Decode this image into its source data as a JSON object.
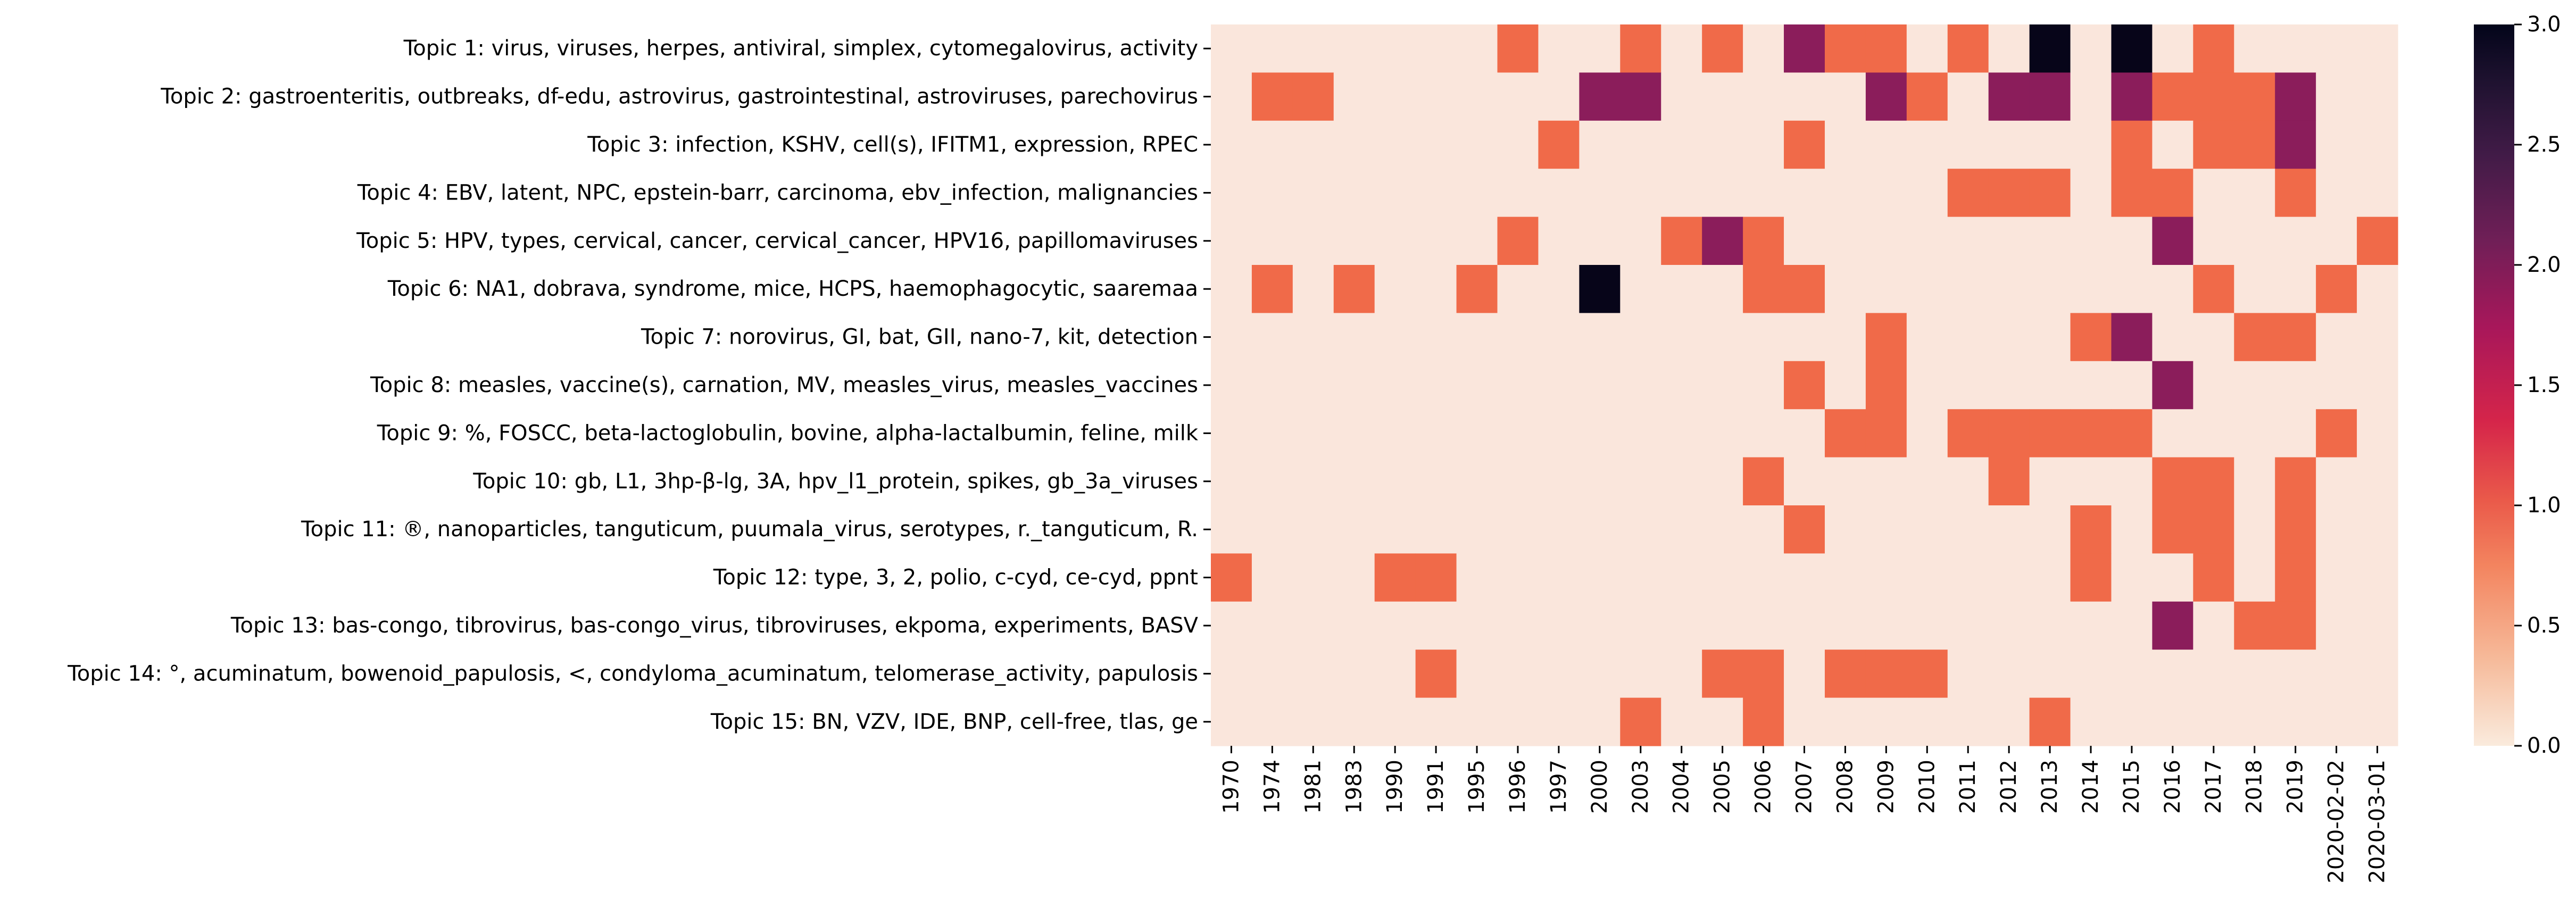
{
  "chart_data": {
    "type": "heatmap",
    "title": "",
    "xlabel": "",
    "ylabel": "",
    "rows": [
      "Topic 1: virus, viruses, herpes, antiviral, simplex, cytomegalovirus, activity",
      "Topic 2: gastroenteritis, outbreaks, df-edu, astrovirus, gastrointestinal, astroviruses, parechovirus",
      "Topic 3: infection, KSHV, cell(s), IFITM1, expression, RPEC",
      "Topic 4: EBV, latent, NPC, epstein-barr, carcinoma, ebv_infection, malignancies",
      "Topic 5: HPV, types, cervical, cancer, cervical_cancer, HPV16, papillomaviruses",
      "Topic 6: NA1, dobrava, syndrome, mice, HCPS, haemophagocytic, saaremaa",
      "Topic 7: norovirus, GI, bat, GII, nano-7, kit, detection",
      "Topic 8: measles, vaccine(s), carnation, MV, measles_virus, measles_vaccines",
      "Topic 9: %, FOSCC, beta-lactoglobulin, bovine, alpha-lactalbumin, feline, milk",
      "Topic 10: gb, L1, 3hp-β-lg, 3A, hpv_l1_protein, spikes, gb_3a_viruses",
      "Topic 11: ®, nanoparticles, tanguticum, puumala_virus, serotypes, r._tanguticum, R.",
      "Topic 12: type, 3, 2, polio, c-cyd, ce-cyd, ppnt",
      "Topic 13: bas-congo, tibrovirus, bas-congo_virus, tibroviruses, ekpoma, experiments, BASV",
      "Topic 14: °, acuminatum, bowenoid_papulosis, <, condyloma_acuminatum, telomerase_activity, papulosis",
      "Topic 15: BN, VZV, IDE, BNP, cell-free, tlas, ge"
    ],
    "columns": [
      "1970",
      "1974",
      "1981",
      "1983",
      "1990",
      "1991",
      "1995",
      "1996",
      "1997",
      "2000",
      "2003",
      "2004",
      "2005",
      "2006",
      "2007",
      "2008",
      "2009",
      "2010",
      "2011",
      "2012",
      "2013",
      "2014",
      "2015",
      "2016",
      "2017",
      "2018",
      "2019",
      "2020-02-02",
      "2020-03-01"
    ],
    "values": [
      [
        0,
        0,
        0,
        0,
        0,
        0,
        0,
        1,
        0,
        0,
        1,
        0,
        1,
        0,
        2,
        1,
        1,
        0,
        1,
        0,
        3,
        0,
        3,
        0,
        1,
        0,
        0,
        0,
        0
      ],
      [
        0,
        1,
        1,
        0,
        0,
        0,
        0,
        0,
        0,
        2,
        2,
        0,
        0,
        0,
        0,
        0,
        2,
        1,
        0,
        2,
        2,
        0,
        2,
        1,
        1,
        1,
        2,
        0,
        0
      ],
      [
        0,
        0,
        0,
        0,
        0,
        0,
        0,
        0,
        1,
        0,
        0,
        0,
        0,
        0,
        1,
        0,
        0,
        0,
        0,
        0,
        0,
        0,
        1,
        0,
        1,
        1,
        2,
        0,
        0
      ],
      [
        0,
        0,
        0,
        0,
        0,
        0,
        0,
        0,
        0,
        0,
        0,
        0,
        0,
        0,
        0,
        0,
        0,
        0,
        1,
        1,
        1,
        0,
        1,
        1,
        0,
        0,
        1,
        0,
        0
      ],
      [
        0,
        0,
        0,
        0,
        0,
        0,
        0,
        1,
        0,
        0,
        0,
        1,
        2,
        1,
        0,
        0,
        0,
        0,
        0,
        0,
        0,
        0,
        0,
        2,
        0,
        0,
        0,
        0,
        1
      ],
      [
        0,
        1,
        0,
        1,
        0,
        0,
        1,
        0,
        0,
        3,
        0,
        0,
        0,
        1,
        1,
        0,
        0,
        0,
        0,
        0,
        0,
        0,
        0,
        0,
        1,
        0,
        0,
        1,
        0
      ],
      [
        0,
        0,
        0,
        0,
        0,
        0,
        0,
        0,
        0,
        0,
        0,
        0,
        0,
        0,
        0,
        0,
        1,
        0,
        0,
        0,
        0,
        1,
        2,
        0,
        0,
        1,
        1,
        0,
        0
      ],
      [
        0,
        0,
        0,
        0,
        0,
        0,
        0,
        0,
        0,
        0,
        0,
        0,
        0,
        0,
        1,
        0,
        1,
        0,
        0,
        0,
        0,
        0,
        0,
        2,
        0,
        0,
        0,
        0,
        0
      ],
      [
        0,
        0,
        0,
        0,
        0,
        0,
        0,
        0,
        0,
        0,
        0,
        0,
        0,
        0,
        0,
        1,
        1,
        0,
        1,
        1,
        1,
        1,
        1,
        0,
        0,
        0,
        0,
        1,
        0
      ],
      [
        0,
        0,
        0,
        0,
        0,
        0,
        0,
        0,
        0,
        0,
        0,
        0,
        0,
        1,
        0,
        0,
        0,
        0,
        0,
        1,
        0,
        0,
        0,
        1,
        1,
        0,
        1,
        0,
        0
      ],
      [
        0,
        0,
        0,
        0,
        0,
        0,
        0,
        0,
        0,
        0,
        0,
        0,
        0,
        0,
        1,
        0,
        0,
        0,
        0,
        0,
        0,
        1,
        0,
        1,
        1,
        0,
        1,
        0,
        0
      ],
      [
        1,
        0,
        0,
        0,
        1,
        1,
        0,
        0,
        0,
        0,
        0,
        0,
        0,
        0,
        0,
        0,
        0,
        0,
        0,
        0,
        0,
        1,
        0,
        0,
        1,
        0,
        1,
        0,
        0
      ],
      [
        0,
        0,
        0,
        0,
        0,
        0,
        0,
        0,
        0,
        0,
        0,
        0,
        0,
        0,
        0,
        0,
        0,
        0,
        0,
        0,
        0,
        0,
        0,
        2,
        0,
        1,
        1,
        0,
        0
      ],
      [
        0,
        0,
        0,
        0,
        0,
        1,
        0,
        0,
        0,
        0,
        0,
        0,
        1,
        1,
        0,
        1,
        1,
        1,
        0,
        0,
        0,
        0,
        0,
        0,
        0,
        0,
        0,
        0,
        0
      ],
      [
        0,
        0,
        0,
        0,
        0,
        0,
        0,
        0,
        0,
        0,
        1,
        0,
        0,
        1,
        0,
        0,
        0,
        0,
        0,
        0,
        1,
        0,
        0,
        0,
        0,
        0,
        0,
        0,
        0
      ]
    ],
    "colorbar": {
      "min": 0,
      "max": 3,
      "ticks": [
        "0.0",
        "0.5",
        "1.0",
        "1.5",
        "2.0",
        "2.5",
        "3.0"
      ]
    },
    "colors": {
      "v0": "#fae6dc",
      "v1": "#f06a49",
      "v2": "#8b1d5b",
      "v3": "#070519"
    }
  }
}
